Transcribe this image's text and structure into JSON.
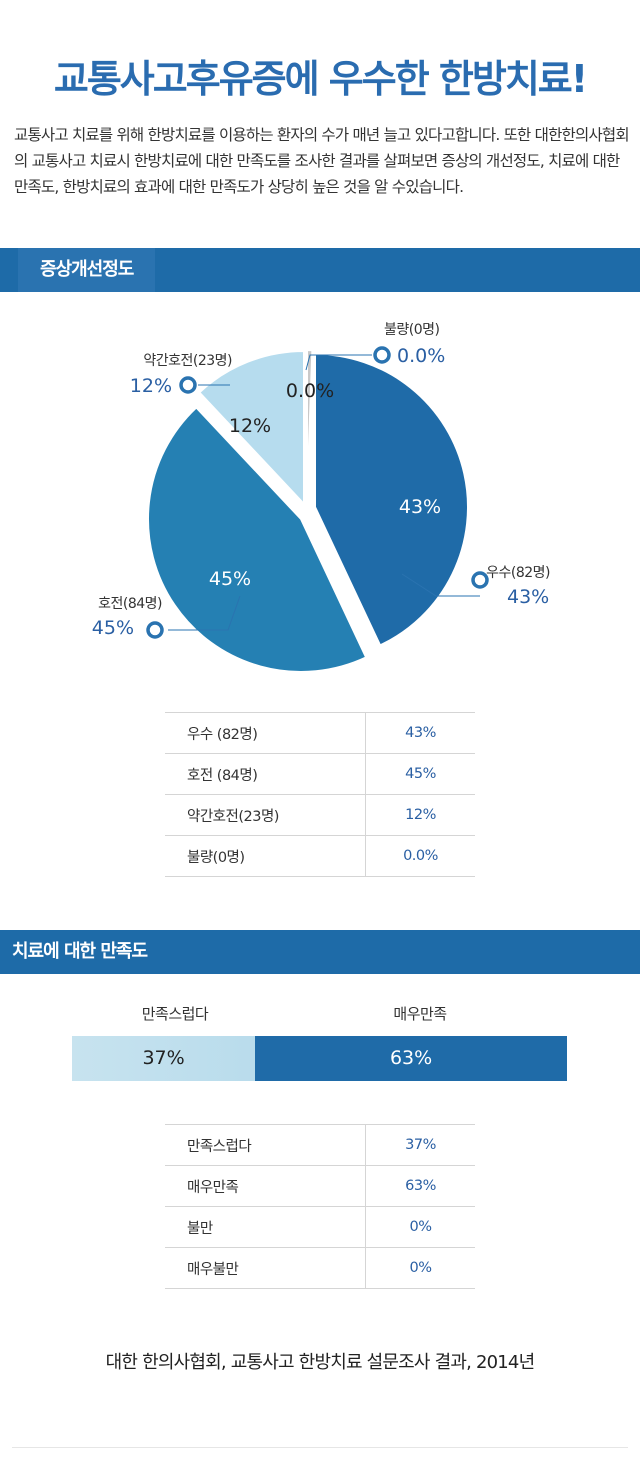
{
  "title": "교통사고후유증에 우수한 한방치료!",
  "intro": "교통사고 치료를 위해 한방치료를 이용하는 환자의 수가 매년 늘고 있다고합니다. 또한 대한한의사협회의 교통사고 치료시 한방치료에 대한 만족도를 조사한 결과를 살펴보면 증상의 개선정도, 치료에 대한 만족도, 한방치료의 효과에 대한 만족도가 상당히 높은 것을 알 수있습니다.",
  "section1": {
    "title": "증상개선정도"
  },
  "section2": {
    "title": "치료에 대한 만족도"
  },
  "chart_data": [
    {
      "type": "pie",
      "title": "증상개선정도",
      "slices": [
        {
          "label": "우수(82명)",
          "value": 43,
          "display": "43%",
          "color": "#1f6ba8"
        },
        {
          "label": "호전(84명)",
          "value": 45,
          "display": "45%",
          "color": "#2580b3"
        },
        {
          "label": "약간호전(23명)",
          "value": 12,
          "display": "12%",
          "color": "#b6dcee"
        },
        {
          "label": "불량(0명)",
          "value": 0,
          "display": "0.0%",
          "color": "#c9c9c9"
        }
      ]
    },
    {
      "type": "bar",
      "title": "치료에 대한 만족도",
      "stacked": true,
      "categories": [
        "만족스럽다",
        "매우만족"
      ],
      "values": [
        37,
        63
      ],
      "display": [
        "37%",
        "63%"
      ],
      "colors": [
        "#bfe0ee",
        "#1f6ba8"
      ]
    }
  ],
  "table1": {
    "rows": [
      {
        "label": "우수 (82명)",
        "value": "43%"
      },
      {
        "label": "호전 (84명)",
        "value": "45%"
      },
      {
        "label": "약간호전(23명)",
        "value": "12%"
      },
      {
        "label": "불량(0명)",
        "value": "0.0%"
      }
    ]
  },
  "table2": {
    "rows": [
      {
        "label": "만족스럽다",
        "value": "37%"
      },
      {
        "label": "매우만족",
        "value": "63%"
      },
      {
        "label": "불만",
        "value": "0%"
      },
      {
        "label": "매우불만",
        "value": "0%"
      }
    ]
  },
  "source": "대한 한의사협회, 교통사고 한방치료 설문조사 결과, 2014년"
}
